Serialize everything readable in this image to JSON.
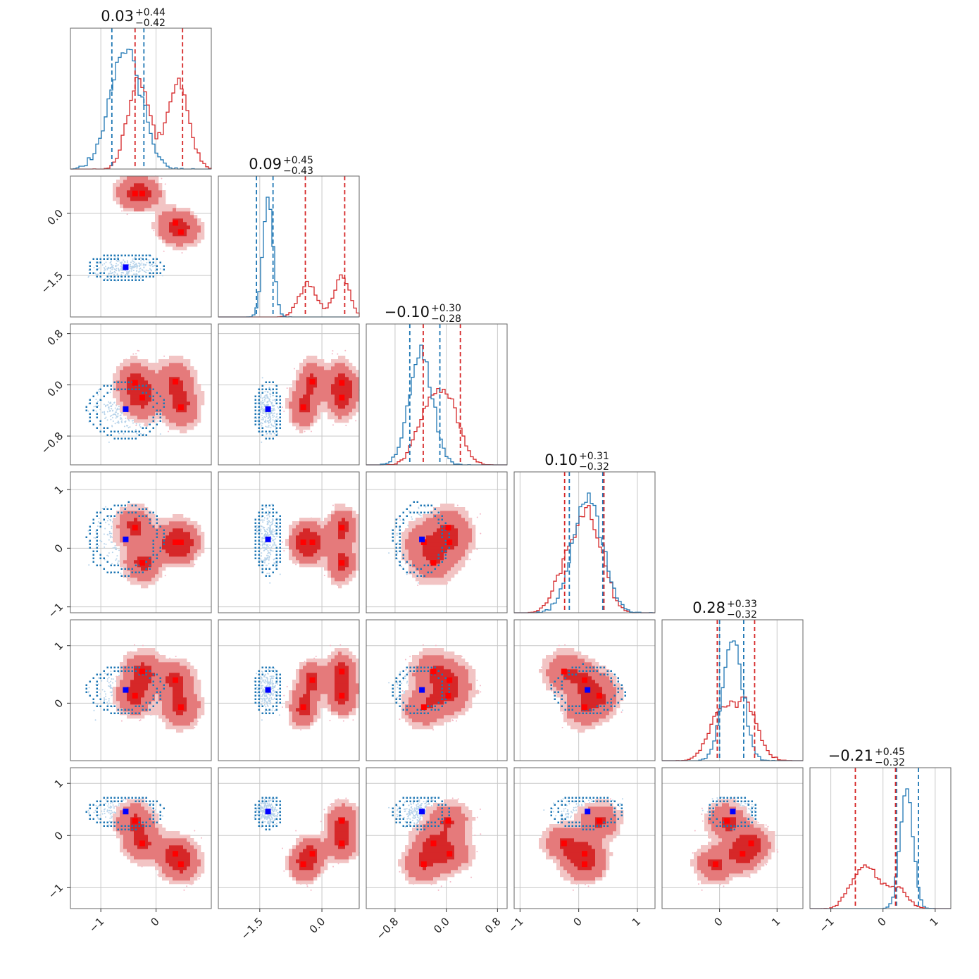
{
  "chart_data": {
    "type": "corner",
    "colors": {
      "red": "#d62728",
      "red_mid": "#e57a7b",
      "red_light": "#f2c4c4",
      "blue": "#1f77b4",
      "blue_marker": "#0000ff",
      "red_marker": "#ff0000"
    },
    "parameters": [
      {
        "index": 0,
        "title_value": "0.03",
        "title_plus": "+0.44",
        "title_minus": "−0.42",
        "range": [
          -1.55,
          1.0
        ],
        "ticks": [
          -1,
          0
        ],
        "tick_labels": [
          "−1",
          "0"
        ],
        "blue_quantiles": [
          -0.8,
          -0.22
        ],
        "red_quantiles": [
          -0.38,
          0.48
        ]
      },
      {
        "index": 1,
        "title_value": "0.09",
        "title_plus": "+0.45",
        "title_minus": "−0.43",
        "range": [
          -2.5,
          0.9
        ],
        "ticks": [
          -1.5,
          0.0
        ],
        "tick_labels": [
          "−1.5",
          "0.0"
        ],
        "blue_quantiles": [
          -1.58,
          -1.18
        ],
        "red_quantiles": [
          -0.4,
          0.55
        ]
      },
      {
        "index": 2,
        "title_value": "−0.10",
        "title_plus": "+0.30",
        "title_minus": "−0.28",
        "range": [
          -1.25,
          0.95
        ],
        "ticks": [
          -0.8,
          0.0,
          0.8
        ],
        "tick_labels": [
          "−0.8",
          "0.0",
          "0.8"
        ],
        "blue_quantiles": [
          -0.57,
          -0.1
        ],
        "red_quantiles": [
          -0.36,
          0.22
        ]
      },
      {
        "index": 3,
        "title_value": "0.10",
        "title_plus": "+0.31",
        "title_minus": "−0.32",
        "range": [
          -1.1,
          1.3
        ],
        "ticks": [
          -1,
          0,
          1
        ],
        "tick_labels": [
          "−1",
          "0",
          "1"
        ],
        "blue_quantiles": [
          -0.16,
          0.41
        ],
        "red_quantiles": [
          -0.24,
          0.43
        ]
      },
      {
        "index": 4,
        "title_value": "0.28",
        "title_plus": "+0.33",
        "title_minus": "−0.32",
        "range": [
          -1.0,
          1.45
        ],
        "ticks": [
          0,
          1
        ],
        "tick_labels": [
          "0",
          "1"
        ],
        "blue_quantiles": [
          0.0,
          0.42
        ],
        "red_quantiles": [
          -0.04,
          0.61
        ]
      },
      {
        "index": 5,
        "title_value": "−0.21",
        "title_plus": "+0.45",
        "title_minus": "−0.32",
        "range": [
          -1.4,
          1.3
        ],
        "ticks": [
          -1,
          0,
          1
        ],
        "tick_labels": [
          "−1",
          "0",
          "1"
        ],
        "blue_quantiles": [
          0.26,
          0.68
        ],
        "red_quantiles": [
          -0.53,
          0.24
        ]
      }
    ],
    "y_axis_labels": [
      {
        "row": 1,
        "ticks": [
          0.0,
          -1.5
        ],
        "tick_labels": [
          "0.0",
          "−1.5"
        ],
        "range": [
          -2.5,
          0.9
        ]
      },
      {
        "row": 2,
        "ticks": [
          0.8,
          0.0,
          -0.8
        ],
        "tick_labels": [
          "0.8",
          "0.0",
          "−0.8"
        ],
        "range": [
          -1.25,
          0.95
        ]
      },
      {
        "row": 3,
        "ticks": [
          1,
          0,
          -1
        ],
        "tick_labels": [
          "1",
          "0",
          "−1"
        ],
        "range": [
          -1.1,
          1.3
        ]
      },
      {
        "row": 4,
        "ticks": [
          1,
          0
        ],
        "tick_labels": [
          "1",
          "0"
        ],
        "range": [
          -1.0,
          1.45
        ]
      },
      {
        "row": 5,
        "ticks": [
          1,
          0,
          -1
        ],
        "tick_labels": [
          "1",
          "0",
          "−1"
        ],
        "range": [
          -1.4,
          1.3
        ]
      }
    ],
    "blue_marker": [
      -0.55,
      -1.3,
      -0.38,
      0.15,
      0.23,
      0.46
    ],
    "red_markers": [
      [
        -0.38,
        0.48,
        0.03,
        0.35,
        0.13,
        0.28
      ],
      [
        -0.25,
        0.48,
        -0.2,
        -0.25,
        0.55,
        -0.15
      ],
      [
        0.35,
        -0.23,
        0.05,
        0.1,
        0.4,
        -0.35
      ],
      [
        0.45,
        -0.45,
        -0.35,
        0.1,
        -0.07,
        -0.55
      ]
    ],
    "blue_gaussian": {
      "mean": [
        -0.55,
        -1.3,
        -0.4,
        0.15,
        0.23,
        0.45
      ],
      "sd": [
        0.28,
        0.12,
        0.18,
        0.25,
        0.17,
        0.12
      ]
    },
    "red_gaussian": {
      "mean": [
        0.05,
        0.1,
        -0.05,
        0.1,
        0.28,
        -0.22
      ],
      "sd": [
        0.45,
        0.5,
        0.28,
        0.3,
        0.33,
        0.35
      ]
    },
    "show_grid": true
  }
}
